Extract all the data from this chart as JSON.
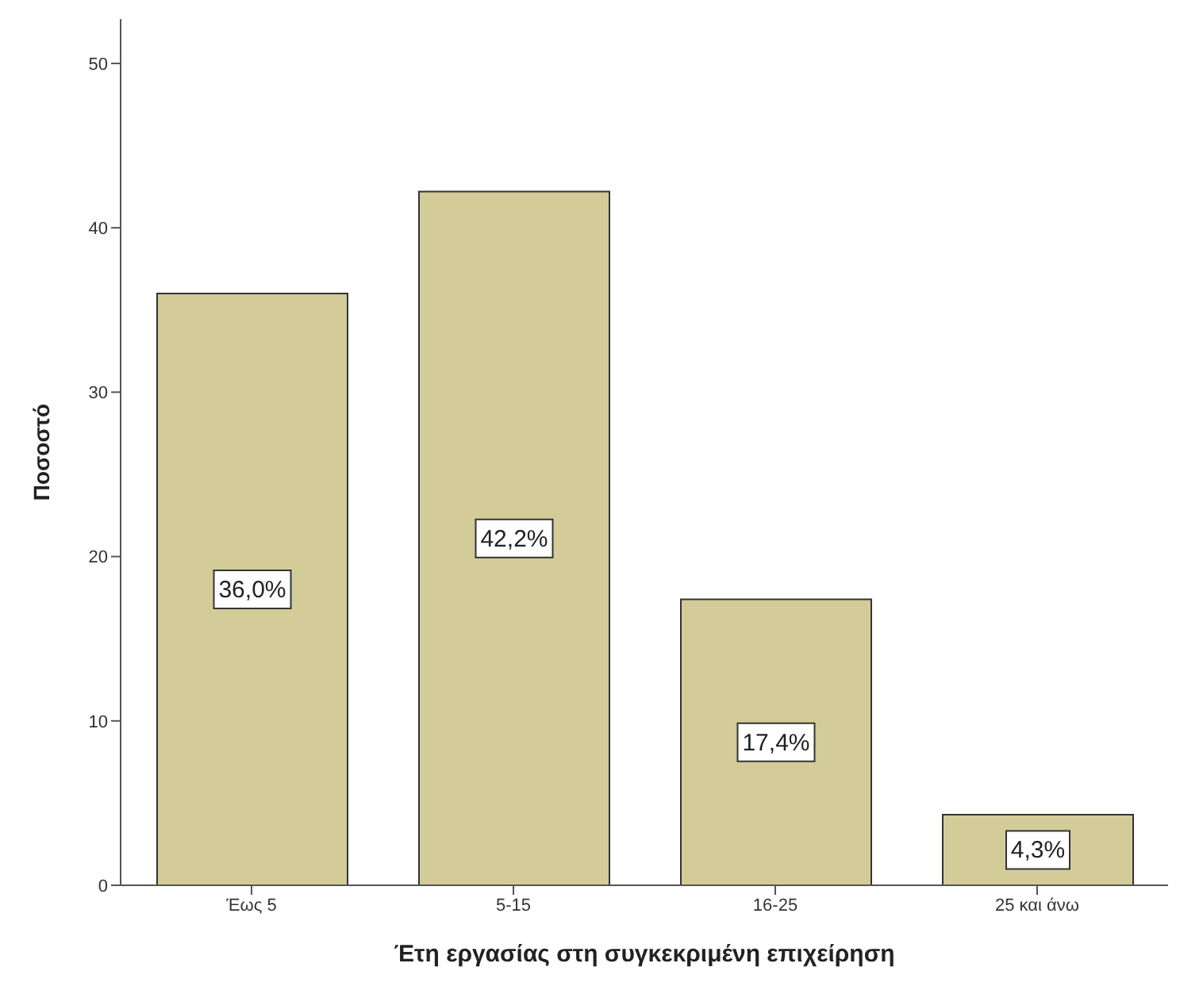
{
  "chart_data": {
    "type": "bar",
    "xlabel": "Έτη εργασίας στη συγκεκριμένη επιχείρηση",
    "ylabel": "Ποσοστό",
    "categories": [
      "Έως 5",
      "5-15",
      "16-25",
      "25 και άνω"
    ],
    "values": [
      36.0,
      42.2,
      17.4,
      4.3
    ],
    "value_labels": [
      "36,0%",
      "42,2%",
      "17,4%",
      "4,3%"
    ],
    "color": "#d3cc98",
    "ylim": [
      0,
      52.7
    ],
    "yticks": [
      0,
      10,
      20,
      30,
      40,
      50
    ],
    "grid": false
  }
}
